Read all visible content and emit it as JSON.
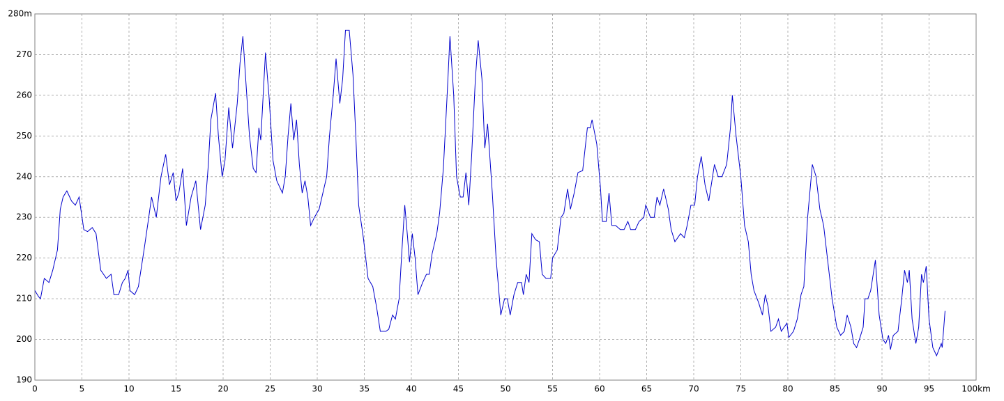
{
  "chart_data": {
    "type": "line",
    "color": "#0000cc",
    "grid": true,
    "xlim": [
      0,
      100
    ],
    "ylim": [
      190,
      280
    ],
    "xticks": [
      0,
      5,
      10,
      15,
      20,
      25,
      30,
      35,
      40,
      45,
      50,
      55,
      60,
      65,
      70,
      75,
      80,
      85,
      90,
      95,
      {
        "value": 100,
        "label": "100km"
      }
    ],
    "yticks": [
      190,
      200,
      210,
      220,
      230,
      240,
      250,
      260,
      270,
      {
        "value": 280,
        "label": "280m"
      }
    ],
    "x": [
      0,
      0.4,
      0.6,
      1.0,
      1.5,
      1.9,
      2.4,
      2.7,
      3.0,
      3.4,
      3.9,
      4.3,
      4.7,
      5.2,
      5.6,
      6.1,
      6.5,
      7.0,
      7.6,
      8.1,
      8.4,
      8.9,
      9.3,
      9.6,
      9.9,
      10.1,
      10.6,
      11.0,
      11.6,
      12.1,
      12.4,
      12.9,
      13.4,
      13.9,
      14.3,
      14.7,
      15.0,
      15.3,
      15.7,
      16.1,
      16.6,
      17.1,
      17.6,
      18.1,
      18.4,
      18.7,
      19.2,
      19.5,
      19.9,
      20.2,
      20.6,
      21.0,
      21.5,
      21.8,
      22.1,
      22.4,
      22.8,
      23.2,
      23.5,
      23.8,
      24.0,
      24.5,
      24.9,
      25.3,
      25.7,
      26.3,
      26.6,
      26.9,
      27.2,
      27.5,
      27.8,
      28.1,
      28.4,
      28.7,
      29.0,
      29.3,
      29.7,
      30.2,
      30.6,
      31.0,
      31.3,
      31.7,
      32.0,
      32.4,
      32.7,
      33.0,
      33.4,
      33.8,
      34.1,
      34.4,
      34.9,
      35.4,
      35.9,
      36.3,
      36.7,
      37.3,
      37.6,
      38.0,
      38.3,
      38.7,
      39.0,
      39.3,
      39.6,
      39.8,
      40.1,
      40.4,
      40.7,
      41.2,
      41.6,
      41.9,
      42.2,
      42.7,
      43.0,
      43.4,
      43.8,
      44.1,
      44.5,
      44.8,
      45.2,
      45.5,
      45.8,
      46.1,
      46.4,
      46.8,
      47.1,
      47.5,
      47.8,
      48.1,
      48.6,
      49.0,
      49.5,
      49.9,
      50.2,
      50.5,
      50.9,
      51.3,
      51.7,
      51.9,
      52.2,
      52.5,
      52.8,
      53.2,
      53.6,
      53.9,
      54.3,
      54.8,
      55.0,
      55.5,
      55.9,
      56.2,
      56.6,
      56.9,
      57.3,
      57.7,
      58.2,
      58.7,
      59.0,
      59.2,
      59.7,
      60.1,
      60.3,
      60.7,
      61.0,
      61.3,
      61.7,
      62.2,
      62.6,
      63.0,
      63.3,
      63.8,
      64.2,
      64.7,
      64.9,
      65.4,
      65.8,
      66.1,
      66.4,
      66.8,
      67.3,
      67.6,
      68.0,
      68.3,
      68.6,
      69.0,
      69.3,
      69.7,
      70.1,
      70.4,
      70.8,
      71.2,
      71.6,
      72.2,
      72.6,
      73.0,
      73.5,
      73.9,
      74.1,
      74.5,
      75.0,
      75.4,
      75.8,
      76.1,
      76.4,
      76.9,
      77.3,
      77.6,
      77.9,
      78.2,
      78.7,
      79.0,
      79.3,
      79.6,
      79.9,
      80.1,
      80.6,
      81.0,
      81.4,
      81.7,
      82.1,
      82.6,
      83.0,
      83.4,
      83.8,
      84.2,
      84.7,
      85.2,
      85.6,
      86.0,
      86.3,
      86.7,
      87.0,
      87.3,
      87.6,
      88.0,
      88.2,
      88.5,
      88.8,
      89.3,
      89.7,
      90.1,
      90.4,
      90.7,
      90.9,
      91.2,
      91.7,
      92.1,
      92.4,
      92.7,
      92.9,
      93.2,
      93.6,
      93.9,
      94.2,
      94.4,
      94.7,
      95.0,
      95.4,
      95.8,
      96.3,
      96.4,
      96.7
    ],
    "values": [
      212,
      210.5,
      210,
      215,
      214,
      217,
      222,
      232,
      235,
      236.5,
      234,
      233,
      235,
      227,
      226.5,
      227.5,
      226,
      217,
      215,
      216,
      211,
      211,
      214,
      215,
      217,
      212,
      211,
      213,
      222,
      230,
      235,
      230,
      240,
      245.5,
      238,
      241,
      234,
      236,
      242,
      228,
      235,
      239,
      227,
      233,
      242,
      254,
      260.5,
      250,
      240,
      244,
      257,
      247,
      258,
      268,
      274.5,
      264,
      250,
      242,
      241,
      252,
      249,
      270.5,
      259,
      244,
      239,
      236,
      240,
      250,
      258,
      249,
      254,
      243,
      236,
      239,
      235,
      228,
      230,
      232,
      236,
      240,
      250,
      260,
      269,
      258,
      264,
      276,
      276,
      265,
      250,
      233,
      225,
      215,
      213,
      208,
      202,
      202,
      202.5,
      206,
      205,
      210,
      222,
      233,
      225,
      219,
      226,
      220,
      211,
      214,
      216,
      216,
      221,
      226,
      231,
      242,
      260,
      274.5,
      260,
      240,
      235,
      235,
      241,
      233,
      245,
      264,
      273.5,
      264,
      247,
      253,
      236,
      220,
      206,
      210,
      210,
      206,
      211,
      214,
      214,
      211,
      216,
      214,
      226,
      224.5,
      224,
      216,
      215,
      215,
      220,
      222,
      230,
      231,
      237,
      232,
      236,
      241,
      241.5,
      252,
      252,
      254,
      248,
      237,
      229,
      229,
      236,
      228,
      228,
      227,
      227,
      229,
      227,
      227,
      229,
      230,
      233,
      230,
      230,
      235,
      233,
      237,
      232,
      227,
      224,
      225,
      226,
      225,
      228,
      233,
      233,
      240,
      245,
      238,
      234,
      243,
      240,
      240,
      243,
      252,
      260,
      250,
      240,
      228,
      224,
      216,
      212,
      209,
      206,
      211,
      208,
      202,
      203,
      205,
      202,
      203,
      204,
      200.5,
      202,
      205,
      211,
      213,
      230,
      243,
      240,
      232,
      228,
      220,
      210,
      203,
      201,
      202,
      206,
      203,
      199,
      198,
      200,
      203,
      210,
      210,
      212,
      219.5,
      206,
      200,
      199,
      201,
      197.5,
      201,
      202,
      210,
      217,
      214,
      217,
      205,
      199,
      203,
      216,
      214,
      218,
      205,
      198,
      196,
      199,
      198,
      207
    ]
  }
}
